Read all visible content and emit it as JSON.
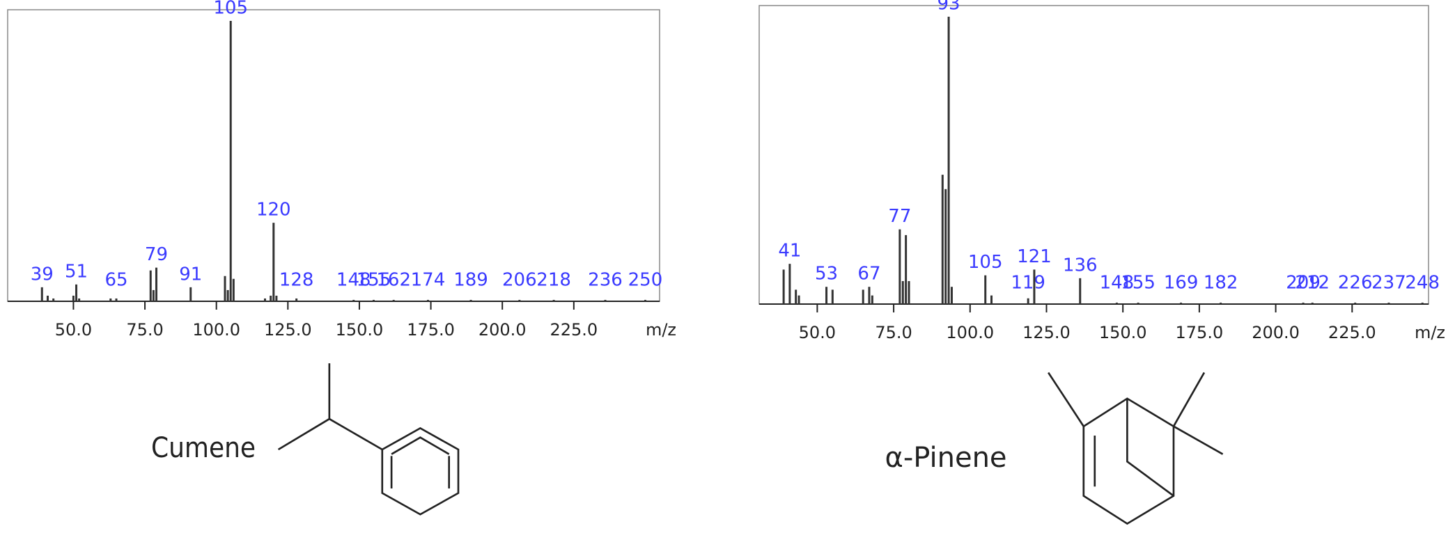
{
  "chart_data": [
    {
      "type": "bar",
      "compound": "Cumene",
      "xlabel": "m/z",
      "color": "#333333",
      "label_color": "#3a3aff",
      "frame": true,
      "xlim": [
        27,
        255
      ],
      "xticks": [
        {
          "value": 50,
          "label": "50.0"
        },
        {
          "value": 75,
          "label": "75.0"
        },
        {
          "value": 100,
          "label": "100.0"
        },
        {
          "value": 125,
          "label": "125.0"
        },
        {
          "value": 150,
          "label": "150.0"
        },
        {
          "value": 175,
          "label": "175.0"
        },
        {
          "value": 200,
          "label": "200.0"
        },
        {
          "value": 225,
          "label": "225.0"
        }
      ],
      "x": [
        39,
        41,
        43,
        50,
        51,
        52,
        63,
        65,
        77,
        78,
        79,
        91,
        103,
        104,
        105,
        106,
        117,
        119,
        120,
        121,
        128,
        148,
        155,
        162,
        174,
        189,
        206,
        218,
        236,
        250
      ],
      "values": [
        5,
        2,
        1,
        2,
        6,
        1,
        1,
        1,
        11,
        4,
        12,
        5,
        9,
        4,
        100,
        8,
        1,
        2,
        28,
        2,
        1,
        0.5,
        0.5,
        0.5,
        0.5,
        0.5,
        0.5,
        0.5,
        0.5,
        0.5
      ],
      "labels": [
        "39",
        null,
        null,
        null,
        "51",
        null,
        null,
        "65",
        null,
        null,
        "79",
        "91",
        null,
        null,
        "105",
        null,
        null,
        null,
        "120",
        null,
        "128",
        "148",
        "155",
        "162",
        "174",
        "189",
        "206",
        "218",
        "236",
        "250"
      ]
    },
    {
      "type": "bar",
      "compound": "α-Pinene",
      "xlabel": "m/z",
      "color": "#333333",
      "label_color": "#3a3aff",
      "frame": true,
      "xlim": [
        31,
        250
      ],
      "xticks": [
        {
          "value": 50,
          "label": "50.0"
        },
        {
          "value": 75,
          "label": "75.0"
        },
        {
          "value": 100,
          "label": "100.0"
        },
        {
          "value": 125,
          "label": "125.0"
        },
        {
          "value": 150,
          "label": "150.0"
        },
        {
          "value": 175,
          "label": "175.0"
        },
        {
          "value": 200,
          "label": "200.0"
        },
        {
          "value": 225,
          "label": "225.0"
        }
      ],
      "x": [
        39,
        41,
        43,
        44,
        53,
        55,
        65,
        67,
        68,
        77,
        78,
        79,
        80,
        91,
        92,
        93,
        94,
        105,
        107,
        119,
        121,
        136,
        148,
        155,
        169,
        182,
        209,
        212,
        226,
        237,
        248
      ],
      "values": [
        12,
        14,
        5,
        3,
        6,
        5,
        5,
        6,
        3,
        26,
        8,
        24,
        8,
        45,
        40,
        100,
        6,
        10,
        3,
        2,
        12,
        9,
        0.5,
        0.5,
        0.5,
        0.5,
        0.5,
        0.5,
        0.5,
        0.5,
        0.5
      ],
      "labels": [
        null,
        "41",
        null,
        null,
        "53",
        null,
        null,
        "67",
        null,
        "77",
        null,
        null,
        null,
        null,
        null,
        "93",
        null,
        "105",
        null,
        "119",
        "121",
        "136",
        "148",
        "155",
        "169",
        "182",
        "209",
        "212",
        "226",
        "237",
        "248"
      ]
    }
  ]
}
